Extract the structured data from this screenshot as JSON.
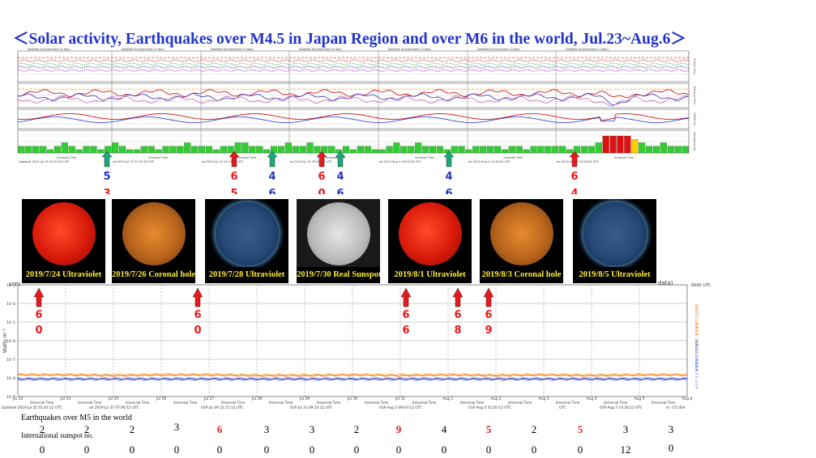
{
  "title": "＜Solar activity, Earthquakes over M4.5 in Japan Region and over M6 in the world, Jul.23~Aug.6＞",
  "colors": {
    "title": "#2233cc",
    "red_arrow": "#e8181b",
    "green_arrow": "#1aa878",
    "blue_text": "#2233cc",
    "bar_green": "#33cc33",
    "bar_red": "#dd1111",
    "bar_yellow": "#ffcc00"
  },
  "upper_strip": {
    "panel_headers": [
      "Satellite Environment (3 day)",
      "Satellite Environment (3 day)",
      "Satellite Environment (3 day)",
      "Satellite Environment (3 day)",
      "Satellite Environment (3 day)",
      "Satellite Environment (3 day)",
      "Satellite Environment (3 day)"
    ],
    "right_labels": [
      "Proton Flux",
      "Electron Flux",
      "GOES Hp",
      "Estimated Kp"
    ],
    "time_axis_label": "Universal Time",
    "footer_texts": [
      "Updated 2019 Jul 25 05:41:02 UTC",
      "ed 2019 Jul 27 07:47:03 UTC",
      "ed 2019 Jul 29 12:11:00 UTC",
      "ed 2019 Jul 31 09:32:00 UTC",
      "ed 2019 Aug 2 09:03:03 UTC",
      "ed 2019 Aug 4 10:35:02 UTC",
      "ed 2019 Aug 7 23:26:02 UTC"
    ]
  },
  "chart_data": [
    {
      "type": "bar",
      "title": "Estimated Kp",
      "values": [
        2,
        2,
        2,
        2,
        1,
        2,
        3,
        2,
        1,
        2,
        2,
        1,
        2,
        3,
        2,
        1,
        1,
        2,
        2,
        1,
        2,
        2,
        2,
        3,
        2,
        2,
        2,
        1,
        2,
        2,
        3,
        3,
        2,
        2,
        1,
        2,
        2,
        3,
        2,
        2,
        3,
        2,
        2,
        2,
        1,
        2,
        1,
        2,
        2,
        1,
        1,
        2,
        3,
        2,
        2,
        3,
        2,
        2,
        2,
        1,
        2,
        2,
        1,
        2,
        2,
        2,
        2,
        1,
        2,
        2,
        1,
        2,
        2,
        2,
        2,
        2,
        1,
        2,
        2,
        2,
        3,
        5,
        5,
        5,
        5,
        4,
        3,
        2,
        2,
        3,
        2,
        2,
        2
      ]
    },
    {
      "type": "line",
      "title": "GOES X-ray flux",
      "ylabel": "Watts m⁻²",
      "xlabel": "Universal Time",
      "x": [
        "Jul 23",
        "Jul 24",
        "Jul 25",
        "Jul 26",
        "Jul 27",
        "Jul 28",
        "Jul 29",
        "Jul 30",
        "Jul 31",
        "Aug 1",
        "Aug 2",
        "Aug 3",
        "Aug 4",
        "Aug 5",
        "Aug 6"
      ],
      "series": [
        {
          "name": "GOES15 1.0–8.0 A",
          "values": [
            1.4e-08,
            1.4e-08,
            1.3e-08,
            1.4e-08,
            1.4e-08,
            1.3e-08,
            1.3e-08,
            1.4e-08,
            1.3e-08,
            1.4e-08,
            1.3e-08,
            1.4e-08,
            1.3e-08,
            1.4e-08,
            1.4e-08
          ]
        },
        {
          "name": "GOES14 1.0–8.0 A",
          "values": [
            1.6e-08,
            1.6e-08,
            1.5e-08,
            1.6e-08,
            1.6e-08,
            1.5e-08,
            1.5e-08,
            1.6e-08,
            1.5e-08,
            1.6e-08,
            1.5e-08,
            1.6e-08,
            1.5e-08,
            1.6e-08,
            1.6e-08
          ]
        },
        {
          "name": "GOES15 0.5–4.0 A",
          "values": [
            9e-09,
            9e-09,
            9e-09,
            9e-09,
            9e-09,
            9e-09,
            9e-09,
            9e-09,
            9e-09,
            9e-09,
            9e-09,
            9e-09,
            9e-09,
            9e-09,
            9e-09
          ]
        },
        {
          "name": "GOES14 0.5–4.0 A",
          "values": [
            8e-09,
            8e-09,
            8e-09,
            8e-09,
            8e-09,
            8e-09,
            8e-09,
            8e-09,
            8e-09,
            8e-09,
            8e-09,
            8e-09,
            8e-09,
            8e-09,
            8e-09
          ]
        }
      ],
      "footer_texts": [
        "Updated 2019 Jul 25 05:41:12 UTC",
        "ed 2019 Jul 27 07:06:12 UTC",
        "019 Jul 29 12:11:12 UTC",
        "019 Jul 31 09:32:12 UTC",
        "019 Aug 2 09:03:12 UTC",
        "019 Aug 4 10:35:12 UTC",
        "UTC",
        "019 Aug 7 23:26:12 UTC",
        "er, CO USA"
      ],
      "header_texts": [
        "GOES",
        "data)",
        "0000 UTC"
      ]
    }
  ],
  "upper_markers": [
    {
      "color": "green",
      "top": "5",
      "bottom": "3"
    },
    {
      "color": "red",
      "top": "6",
      "bottom": "5"
    },
    {
      "color": "green",
      "top": "4",
      "bottom": "6"
    },
    {
      "color": "red",
      "top": "6",
      "bottom": "0"
    },
    {
      "color": "green",
      "top": "4",
      "bottom": "6"
    },
    {
      "color": "green",
      "top": "4",
      "bottom": "6"
    },
    {
      "color": "red",
      "top": "6",
      "bottom": "4"
    }
  ],
  "lower_markers": [
    {
      "top": "6",
      "bottom": "0"
    },
    {
      "top": "6",
      "bottom": "0"
    },
    {
      "top": "6",
      "bottom": "6"
    },
    {
      "top": "6",
      "bottom": "8"
    },
    {
      "top": "6",
      "bottom": "9"
    }
  ],
  "photos": [
    {
      "caption": "2019/7/24 Ultraviolet",
      "kind": "uv-red"
    },
    {
      "caption": "2019/7/26 Coronal hole",
      "kind": "coronal"
    },
    {
      "caption": "2019/7/28 Ultraviolet",
      "kind": "uv-blue"
    },
    {
      "caption": "2019/7/30 Real Sunspot",
      "kind": "white"
    },
    {
      "caption": "2019/8/1 Ultraviolet",
      "kind": "uv-red"
    },
    {
      "caption": "2019/8/3 Coronal hole",
      "kind": "coronal"
    },
    {
      "caption": "2019/8/5 Ultraviolet",
      "kind": "uv-blue"
    }
  ],
  "bottom_table": {
    "eq_label": "Earthquakes over M5 in the world",
    "sunspot_label": "International sunspot no.",
    "earthquakes": [
      "2",
      "2",
      "2",
      "3",
      "6",
      "3",
      "3",
      "2",
      "9",
      "4",
      "5",
      "2",
      "5",
      "3",
      "3"
    ],
    "sunspots": [
      "0",
      "0",
      "0",
      "0",
      "0",
      "0",
      "0",
      "0",
      "0",
      "0",
      "0",
      "0",
      "0",
      "12",
      "0"
    ],
    "red_eq_indices": [
      4,
      8,
      10,
      12
    ]
  }
}
